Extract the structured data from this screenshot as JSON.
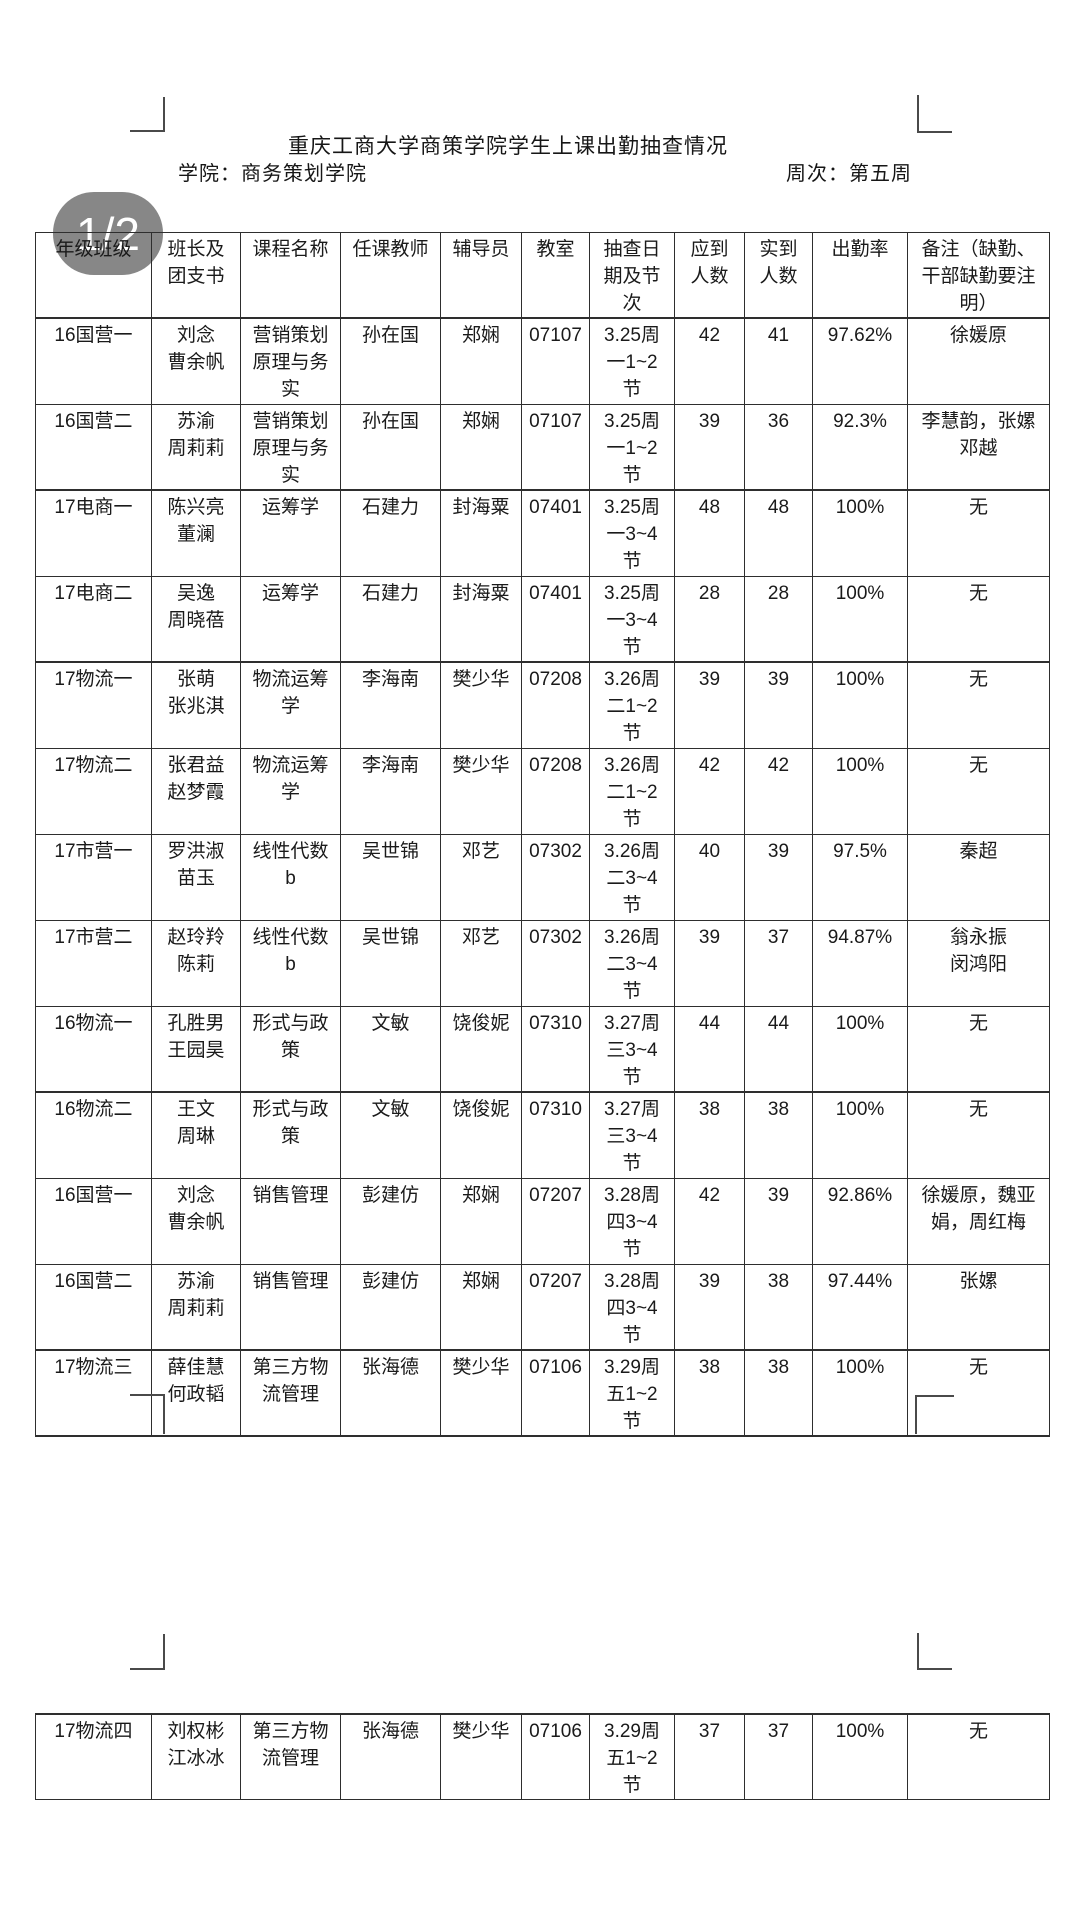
{
  "page_badge": "1/2",
  "colors": {
    "badge_pill": "rgba(108,108,108,0.82)",
    "badge_text": "#ffffff",
    "table_border": "#2e2e2e",
    "text": "#1a1a1a",
    "background": "#ffffff"
  },
  "document": {
    "title": "重庆工商大学商策学院学生上课出勤抽查情况",
    "school_label": "学院：商务策划学院",
    "week_label": "周次：第五周"
  },
  "table": {
    "headers": [
      "年级班级",
      "班长及\n团支书",
      "课程名称",
      "任课教师",
      "辅导员",
      "教室",
      "抽查日\n期及节\n次",
      "应到\n人数",
      "实到\n人数",
      "出勤率",
      "备注（缺勤、\n干部缺勤要注\n明）"
    ],
    "rows": [
      [
        "16国营一",
        "刘念\n曹余帆",
        "营销策划\n原理与务\n实",
        "孙在国",
        "郑娴",
        "07107",
        "3.25周\n一1~2\n节",
        "42",
        "41",
        "97.62%",
        "徐媛原"
      ],
      [
        "16国营二",
        "苏渝\n周莉莉",
        "营销策划\n原理与务\n实",
        "孙在国",
        "郑娴",
        "07107",
        "3.25周\n一1~2\n节",
        "39",
        "36",
        "92.3%",
        "李慧韵，张嫘\n邓越"
      ],
      [
        "17电商一",
        "陈兴亮\n董澜",
        "运筹学",
        "石建力",
        "封海粟",
        "07401",
        "3.25周\n一3~4\n节",
        "48",
        "48",
        "100%",
        "无"
      ],
      [
        "17电商二",
        "吴逸\n周晓蓓",
        "运筹学",
        "石建力",
        "封海粟",
        "07401",
        "3.25周\n一3~4\n节",
        "28",
        "28",
        "100%",
        "无"
      ],
      [
        "17物流一",
        "张萌\n张兆淇",
        "物流运筹\n学",
        "李海南",
        "樊少华",
        "07208",
        "3.26周\n二1~2\n节",
        "39",
        "39",
        "100%",
        "无"
      ],
      [
        "17物流二",
        "张君益\n赵梦霞",
        "物流运筹\n学",
        "李海南",
        "樊少华",
        "07208",
        "3.26周\n二1~2\n节",
        "42",
        "42",
        "100%",
        "无"
      ],
      [
        "17市营一",
        "罗洪淑\n苗玉",
        "线性代数\nb",
        "吴世锦",
        "邓艺",
        "07302",
        "3.26周\n二3~4\n节",
        "40",
        "39",
        "97.5%",
        "秦超"
      ],
      [
        "17市营二",
        "赵玲羚\n陈莉",
        "线性代数\nb",
        "吴世锦",
        "邓艺",
        "07302",
        "3.26周\n二3~4\n节",
        "39",
        "37",
        "94.87%",
        "翁永振\n闵鸿阳"
      ],
      [
        "16物流一",
        "孔胜男\n王园昊",
        "形式与政\n策",
        "文敏",
        "饶俊妮",
        "07310",
        "3.27周\n三3~4\n节",
        "44",
        "44",
        "100%",
        "无"
      ],
      [
        "16物流二",
        "王文\n周琳",
        "形式与政\n策",
        "文敏",
        "饶俊妮",
        "07310",
        "3.27周\n三3~4\n节",
        "38",
        "38",
        "100%",
        "无"
      ],
      [
        "16国营一",
        "刘念\n曹余帆",
        "销售管理",
        "彭建仿",
        "郑娴",
        "07207",
        "3.28周\n四3~4\n节",
        "42",
        "39",
        "92.86%",
        "徐媛原，魏亚\n娟，周红梅"
      ],
      [
        "16国营二",
        "苏渝\n周莉莉",
        "销售管理",
        "彭建仿",
        "郑娴",
        "07207",
        "3.28周\n四3~4\n节",
        "39",
        "38",
        "97.44%",
        "张嫘"
      ],
      [
        "17物流三",
        "薛佳慧\n何政韬",
        "第三方物\n流管理",
        "张海德",
        "樊少华",
        "07106",
        "3.29周\n五1~2\n节",
        "38",
        "38",
        "100%",
        "无"
      ]
    ]
  },
  "table2": {
    "rows": [
      [
        "17物流四",
        "刘权彬\n江冰冰",
        "第三方物\n流管理",
        "张海德",
        "樊少华",
        "07106",
        "3.29周\n五1~2\n节",
        "37",
        "37",
        "100%",
        "无"
      ]
    ]
  }
}
